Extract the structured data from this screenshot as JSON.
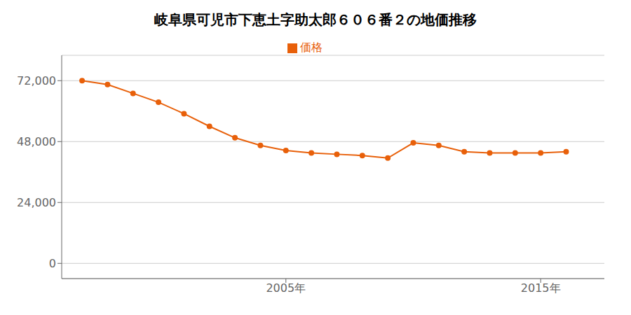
{
  "chart_data": {
    "type": "line",
    "title": "岐阜県可児市下恵土字助太郎６０６番２の地価推移",
    "x": [
      1997,
      1998,
      1999,
      2000,
      2001,
      2002,
      2003,
      2004,
      2005,
      2006,
      2007,
      2008,
      2009,
      2010,
      2011,
      2012,
      2013,
      2014,
      2015,
      2016
    ],
    "series": [
      {
        "name": "価格",
        "color": "#e8600a",
        "marker": "circle",
        "values": [
          72000,
          70500,
          67000,
          63500,
          59000,
          54000,
          49500,
          46500,
          44500,
          43500,
          43000,
          42500,
          41500,
          47500,
          46500,
          44000,
          43500,
          43500,
          43500,
          44000
        ]
      }
    ],
    "xlim": [
      1996.2,
      2017.5
    ],
    "xticks": [
      {
        "value": 2005,
        "label": "2005年"
      },
      {
        "value": 2015,
        "label": "2015年"
      }
    ],
    "ylim": [
      -6000,
      82000
    ],
    "yticks": [
      0,
      {
        "value": 24000,
        "label": "24,000"
      },
      {
        "value": 48000,
        "label": "48,000"
      },
      {
        "value": 72000,
        "label": "72,000"
      }
    ],
    "grid": "y",
    "legend": "top"
  }
}
